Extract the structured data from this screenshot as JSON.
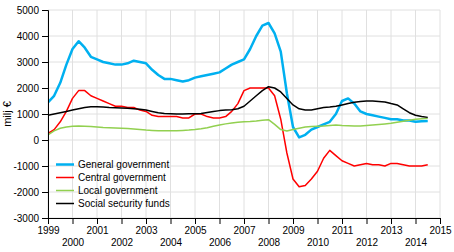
{
  "chart_data": {
    "type": "line",
    "ylabel": "milj €",
    "x": [
      1999.0,
      1999.25,
      1999.5,
      1999.75,
      2000.0,
      2000.25,
      2000.5,
      2000.75,
      2001.0,
      2001.25,
      2001.5,
      2001.75,
      2002.0,
      2002.25,
      2002.5,
      2002.75,
      2003.0,
      2003.25,
      2003.5,
      2003.75,
      2004.0,
      2004.25,
      2004.5,
      2004.75,
      2005.0,
      2005.25,
      2005.5,
      2005.75,
      2006.0,
      2006.25,
      2006.5,
      2006.75,
      2007.0,
      2007.25,
      2007.5,
      2007.75,
      2008.0,
      2008.25,
      2008.5,
      2008.75,
      2009.0,
      2009.25,
      2009.5,
      2009.75,
      2010.0,
      2010.25,
      2010.5,
      2010.75,
      2011.0,
      2011.25,
      2011.5,
      2011.75,
      2012.0,
      2012.25,
      2012.5,
      2012.75,
      2013.0,
      2013.25,
      2013.5,
      2013.75,
      2014.0,
      2014.25,
      2014.5
    ],
    "series": [
      {
        "name": "General government",
        "color": "#00b0f0",
        "values": [
          1450,
          1700,
          2200,
          2900,
          3500,
          3800,
          3550,
          3200,
          3100,
          3000,
          2950,
          2900,
          2900,
          2950,
          3050,
          3000,
          2950,
          2700,
          2500,
          2350,
          2350,
          2300,
          2250,
          2300,
          2400,
          2450,
          2500,
          2550,
          2600,
          2750,
          2900,
          3000,
          3100,
          3500,
          4000,
          4400,
          4500,
          4100,
          3400,
          1800,
          500,
          100,
          200,
          400,
          500,
          600,
          700,
          1000,
          1500,
          1600,
          1400,
          1100,
          1000,
          950,
          900,
          850,
          800,
          800,
          750,
          750,
          700,
          720,
          730
        ]
      },
      {
        "name": "Central government",
        "color": "#ff0000",
        "values": [
          250,
          400,
          700,
          1100,
          1600,
          1900,
          1900,
          1700,
          1600,
          1500,
          1400,
          1300,
          1300,
          1250,
          1250,
          1150,
          1100,
          950,
          900,
          900,
          900,
          900,
          850,
          850,
          1000,
          1000,
          900,
          850,
          850,
          900,
          1100,
          1400,
          1900,
          2000,
          2000,
          2000,
          2000,
          1700,
          800,
          -500,
          -1500,
          -1800,
          -1750,
          -1500,
          -1200,
          -700,
          -400,
          -600,
          -800,
          -900,
          -1000,
          -950,
          -900,
          -950,
          -950,
          -1000,
          -900,
          -900,
          -950,
          -1000,
          -1000,
          -1000,
          -950
        ]
      },
      {
        "name": "Local government",
        "color": "#92d050",
        "values": [
          200,
          350,
          450,
          500,
          530,
          540,
          530,
          520,
          500,
          480,
          470,
          460,
          450,
          440,
          420,
          400,
          380,
          370,
          360,
          360,
          360,
          360,
          370,
          380,
          400,
          430,
          470,
          530,
          580,
          620,
          650,
          680,
          700,
          710,
          730,
          760,
          780,
          600,
          400,
          350,
          400,
          450,
          500,
          520,
          530,
          540,
          560,
          580,
          560,
          550,
          540,
          540,
          560,
          580,
          600,
          620,
          640,
          680,
          720,
          760,
          800,
          820,
          840
        ]
      },
      {
        "name": "Social security funds",
        "color": "#000000",
        "values": [
          950,
          1000,
          1050,
          1100,
          1150,
          1200,
          1250,
          1280,
          1280,
          1270,
          1250,
          1240,
          1230,
          1220,
          1200,
          1180,
          1150,
          1100,
          1050,
          1020,
          1010,
          1000,
          1000,
          1010,
          1010,
          1020,
          1060,
          1100,
          1130,
          1150,
          1160,
          1200,
          1300,
          1500,
          1700,
          1900,
          2050,
          2000,
          1850,
          1600,
          1350,
          1200,
          1150,
          1150,
          1200,
          1250,
          1270,
          1300,
          1350,
          1400,
          1450,
          1480,
          1500,
          1500,
          1480,
          1460,
          1400,
          1350,
          1200,
          1050,
          950,
          900,
          870
        ]
      }
    ],
    "xlim": [
      1999.0,
      2015.0
    ],
    "xticks": [
      1999,
      2000,
      2001,
      2002,
      2003,
      2004,
      2005,
      2006,
      2007,
      2008,
      2009,
      2010,
      2011,
      2012,
      2013,
      2014,
      2015
    ],
    "ylim": [
      -3000,
      5000
    ],
    "yticks": [
      -3000,
      -2000,
      -1000,
      0,
      1000,
      2000,
      3000,
      4000,
      5000
    ],
    "grid": true,
    "legend": "lower left"
  }
}
